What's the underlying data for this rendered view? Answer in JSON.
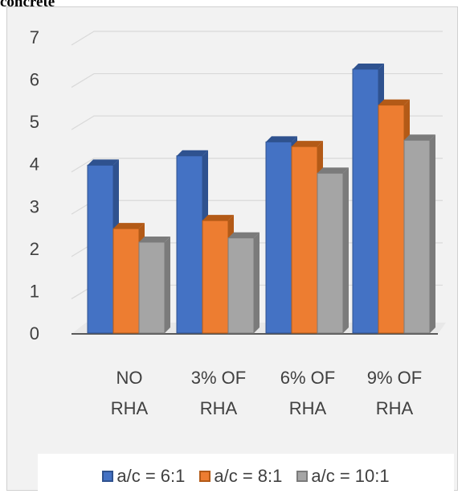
{
  "fragment_text": "concrete",
  "chart_data": {
    "type": "bar",
    "categories": [
      [
        "NO",
        "RHA"
      ],
      [
        "3% OF",
        "RHA"
      ],
      [
        "6% OF",
        "RHA"
      ],
      [
        "9% OF",
        "RHA"
      ]
    ],
    "series": [
      {
        "name": "a/c = 6:1",
        "values": [
          3.97,
          4.19,
          4.52,
          6.24
        ],
        "color": "#4472c4",
        "light": "#6e96e0",
        "dark": "#2f528f"
      },
      {
        "name": "a/c = 8:1",
        "values": [
          2.47,
          2.66,
          4.41,
          5.39
        ],
        "color": "#ed7d31",
        "light": "#f5a05e",
        "dark": "#b35a17"
      },
      {
        "name": "a/c = 10:1",
        "values": [
          2.15,
          2.25,
          3.78,
          4.56
        ],
        "color": "#a5a5a5",
        "light": "#c3c3c3",
        "dark": "#7b7b7b"
      }
    ],
    "yticks": [
      0,
      1,
      2,
      3,
      4,
      5,
      6,
      7
    ],
    "ylim": [
      0,
      7
    ],
    "grid": true,
    "legend_position": "bottom"
  }
}
